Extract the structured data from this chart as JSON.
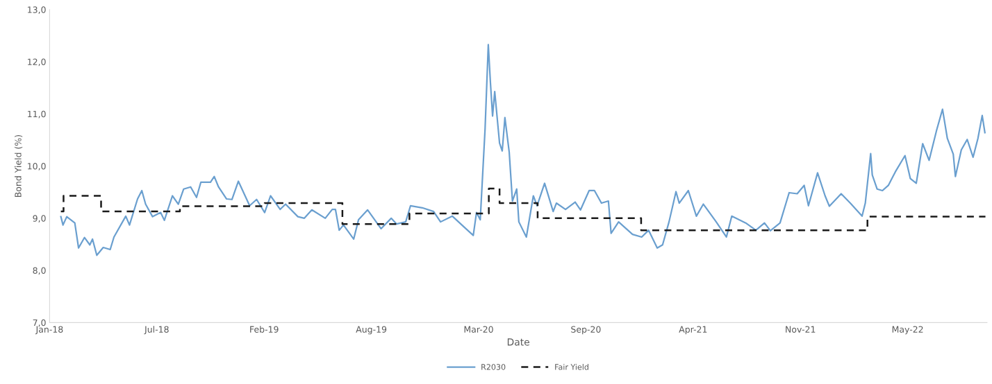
{
  "chart_data": {
    "type": "line",
    "xlabel": "Date",
    "ylabel": "Bond Yield (%)",
    "xlim": [
      "2018-01-01",
      "2022-10-15"
    ],
    "xticks": [
      {
        "value": "2018-01-01",
        "label": "Jan-18"
      },
      {
        "value": "2018-07-20",
        "label": "Jul-18"
      },
      {
        "value": "2019-02-05",
        "label": "Feb-19"
      },
      {
        "value": "2019-08-24",
        "label": "Aug-19"
      },
      {
        "value": "2020-03-11",
        "label": "Mar-20"
      },
      {
        "value": "2020-09-27",
        "label": "Sep-20"
      },
      {
        "value": "2021-04-15",
        "label": "Apr-21"
      },
      {
        "value": "2021-11-01",
        "label": "Nov-21"
      },
      {
        "value": "2022-05-20",
        "label": "May-22"
      }
    ],
    "ylim": [
      7,
      13
    ],
    "yticks": [
      {
        "value": 7,
        "label": "7,0"
      },
      {
        "value": 8,
        "label": "8,0"
      },
      {
        "value": 9,
        "label": "9,0"
      },
      {
        "value": 10,
        "label": "10,0"
      },
      {
        "value": 11,
        "label": "11,0"
      },
      {
        "value": 12,
        "label": "12,0"
      },
      {
        "value": 13,
        "label": "13,0"
      }
    ],
    "grid": false,
    "legend": "bottom",
    "marker": "none",
    "series": [
      {
        "name": "R2030",
        "color": "#6a9fcf",
        "line_style": "solid",
        "x": [
          "2018-01-22",
          "2018-01-26",
          "2018-02-02",
          "2018-02-17",
          "2018-02-24",
          "2018-03-07",
          "2018-03-17",
          "2018-03-22",
          "2018-03-30",
          "2018-04-11",
          "2018-04-24",
          "2018-05-01",
          "2018-05-23",
          "2018-05-30",
          "2018-06-14",
          "2018-06-22",
          "2018-06-29",
          "2018-07-12",
          "2018-07-27",
          "2018-08-03",
          "2018-08-18",
          "2018-08-29",
          "2018-09-08",
          "2018-09-21",
          "2018-10-02",
          "2018-10-10",
          "2018-10-28",
          "2018-11-04",
          "2018-11-12",
          "2018-11-27",
          "2018-12-07",
          "2018-12-19",
          "2019-01-09",
          "2019-01-22",
          "2019-02-06",
          "2019-02-17",
          "2019-03-07",
          "2019-03-17",
          "2019-04-09",
          "2019-04-21",
          "2019-05-05",
          "2019-05-30",
          "2019-06-12",
          "2019-06-18",
          "2019-06-25",
          "2019-07-03",
          "2019-07-22",
          "2019-07-31",
          "2019-08-17",
          "2019-09-11",
          "2019-09-30",
          "2019-10-10",
          "2019-10-27",
          "2019-11-05",
          "2019-11-27",
          "2019-12-18",
          "2019-12-31",
          "2020-01-22",
          "2020-02-13",
          "2020-03-01",
          "2020-03-07",
          "2020-03-14",
          "2020-03-23",
          "2020-03-29",
          "2020-04-02",
          "2020-04-06",
          "2020-04-10",
          "2020-04-19",
          "2020-04-24",
          "2020-04-29",
          "2020-05-07",
          "2020-05-13",
          "2020-05-21",
          "2020-05-25",
          "2020-06-08",
          "2020-06-21",
          "2020-06-28",
          "2020-07-12",
          "2020-07-28",
          "2020-08-03",
          "2020-08-20",
          "2020-09-07",
          "2020-09-17",
          "2020-10-03",
          "2020-10-13",
          "2020-10-26",
          "2020-11-08",
          "2020-11-13",
          "2020-11-27",
          "2020-12-23",
          "2021-01-09",
          "2021-01-22",
          "2021-02-07",
          "2021-02-17",
          "2021-03-01",
          "2021-03-14",
          "2021-03-20",
          "2021-04-06",
          "2021-04-21",
          "2021-05-04",
          "2021-05-28",
          "2021-06-16",
          "2021-06-26",
          "2021-07-22",
          "2021-08-10",
          "2021-08-26",
          "2021-09-06",
          "2021-09-24",
          "2021-10-11",
          "2021-10-26",
          "2021-11-08",
          "2021-11-16",
          "2021-12-03",
          "2021-12-17",
          "2021-12-25",
          "2022-01-16",
          "2022-02-02",
          "2022-02-24",
          "2022-03-02",
          "2022-03-12",
          "2022-03-15",
          "2022-03-24",
          "2022-04-03",
          "2022-04-14",
          "2022-04-27",
          "2022-05-15",
          "2022-05-25",
          "2022-06-05",
          "2022-06-17",
          "2022-06-29",
          "2022-07-13",
          "2022-07-24",
          "2022-08-02",
          "2022-08-13",
          "2022-08-17",
          "2022-08-28",
          "2022-09-08",
          "2022-09-19",
          "2022-09-28",
          "2022-10-06",
          "2022-10-11"
        ],
        "values": [
          9.03,
          8.87,
          9.03,
          8.91,
          8.43,
          8.63,
          8.49,
          8.6,
          8.29,
          8.44,
          8.4,
          8.64,
          9.04,
          8.87,
          9.37,
          9.53,
          9.27,
          9.03,
          9.11,
          8.96,
          9.43,
          9.27,
          9.56,
          9.6,
          9.4,
          9.69,
          9.69,
          9.8,
          9.6,
          9.37,
          9.36,
          9.71,
          9.24,
          9.36,
          9.11,
          9.43,
          9.17,
          9.27,
          9.03,
          9.0,
          9.16,
          9.0,
          9.17,
          9.17,
          8.77,
          8.87,
          8.6,
          8.97,
          9.16,
          8.8,
          9.0,
          8.89,
          8.93,
          9.24,
          9.2,
          9.13,
          8.93,
          9.04,
          8.83,
          8.67,
          9.11,
          8.97,
          10.71,
          12.33,
          11.6,
          10.96,
          11.43,
          10.44,
          10.29,
          10.93,
          10.27,
          9.33,
          9.56,
          8.93,
          8.64,
          9.43,
          9.24,
          9.67,
          9.13,
          9.29,
          9.17,
          9.31,
          9.16,
          9.53,
          9.53,
          9.29,
          9.33,
          8.71,
          8.93,
          8.69,
          8.64,
          8.77,
          8.43,
          8.49,
          8.93,
          9.51,
          9.29,
          9.53,
          9.04,
          9.27,
          8.93,
          8.64,
          9.04,
          8.91,
          8.77,
          8.91,
          8.76,
          8.91,
          9.49,
          9.47,
          9.63,
          9.24,
          9.87,
          9.43,
          9.23,
          9.47,
          9.29,
          9.04,
          9.29,
          10.24,
          9.83,
          9.56,
          9.53,
          9.63,
          9.89,
          10.2,
          9.76,
          9.67,
          10.43,
          10.11,
          10.69,
          11.09,
          10.53,
          10.23,
          9.8,
          10.31,
          10.51,
          10.17,
          10.53,
          10.97,
          10.64
        ]
      },
      {
        "name": "Fair Yield",
        "type": "step",
        "color": "#1a1a1a",
        "line_style": "dashed",
        "x": [
          "2018-01-22",
          "2018-01-27",
          "2018-04-07",
          "2018-09-01",
          "2019-02-06",
          "2019-07-01",
          "2019-11-03",
          "2020-03-30",
          "2020-04-19",
          "2020-06-29",
          "2021-01-08",
          "2022-03-06",
          "2022-10-12"
        ],
        "values": [
          9.13,
          9.43,
          9.13,
          9.23,
          9.29,
          8.89,
          9.09,
          9.57,
          9.29,
          9.0,
          8.77,
          9.03,
          9.03
        ]
      }
    ]
  }
}
